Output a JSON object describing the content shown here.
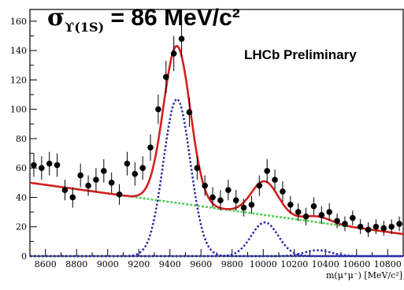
{
  "title": {
    "symbol": "σ",
    "subscript": "ϒ(1S)",
    "text": " = 86 MeV/c²"
  },
  "experiment_label": "LHCb Preliminary",
  "chart_data": {
    "type": "scatter",
    "xlabel": "m(μ⁺μ⁻) [MeV/c²]",
    "ylabel": "",
    "xlim": [
      8500,
      10900
    ],
    "ylim": [
      0,
      168
    ],
    "x_ticks": [
      8600,
      8800,
      9000,
      9200,
      9400,
      9600,
      9800,
      10000,
      10200,
      10400,
      10600,
      10800
    ],
    "y_ticks": [
      0,
      20,
      40,
      60,
      80,
      100,
      120,
      140,
      160
    ],
    "grid": false,
    "data_points": {
      "x": [
        8525,
        8575,
        8625,
        8675,
        8725,
        8775,
        8825,
        8875,
        8925,
        8975,
        9025,
        9075,
        9125,
        9175,
        9225,
        9275,
        9325,
        9375,
        9425,
        9475,
        9525,
        9575,
        9625,
        9675,
        9725,
        9775,
        9825,
        9875,
        9925,
        9975,
        10025,
        10075,
        10125,
        10175,
        10225,
        10275,
        10325,
        10375,
        10425,
        10475,
        10525,
        10575,
        10625,
        10675,
        10725,
        10775,
        10825,
        10875
      ],
      "y": [
        62,
        60,
        63,
        62,
        45,
        40,
        55,
        48,
        52,
        58,
        50,
        42,
        63,
        56,
        60,
        74,
        100,
        122,
        138,
        148,
        98,
        60,
        48,
        40,
        38,
        45,
        38,
        33,
        35,
        48,
        58,
        52,
        44,
        35,
        30,
        27,
        34,
        28,
        30,
        24,
        22,
        26,
        20,
        18,
        20,
        19,
        20,
        22
      ],
      "yerr": [
        8,
        8,
        8,
        8,
        7,
        7,
        8,
        7,
        8,
        8,
        7,
        7,
        8,
        8,
        8,
        9,
        10,
        11,
        12,
        12,
        10,
        8,
        7,
        7,
        7,
        7,
        7,
        6,
        6,
        7,
        8,
        7,
        7,
        6,
        6,
        6,
        6,
        6,
        6,
        5,
        5,
        5,
        5,
        5,
        5,
        5,
        5,
        5
      ]
    },
    "background_line": {
      "x": [
        8500,
        10900
      ],
      "y": [
        50,
        15
      ]
    },
    "signal_1s": {
      "mean": 9445,
      "sigma": 86,
      "amplitude": 107
    },
    "signal_2s": {
      "mean": 10010,
      "sigma": 86,
      "amplitude": 23
    },
    "signal_3s": {
      "mean": 10350,
      "sigma": 86,
      "amplitude": 4
    },
    "colors": {
      "total_fit": "#d42020",
      "background": "#4fcf4f",
      "signal": "#2a2aa8",
      "points": "#000000"
    }
  }
}
